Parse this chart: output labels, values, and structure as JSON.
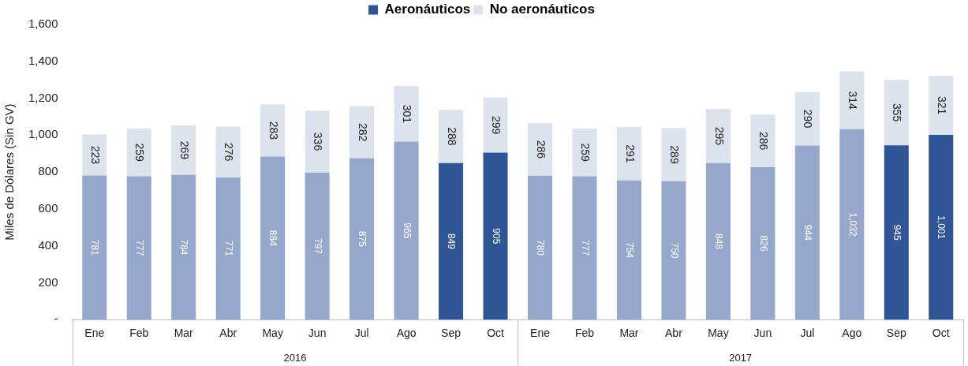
{
  "chart_data": {
    "type": "bar",
    "stacked": true,
    "ylabel": "Miles de Dólares (Sin GV)",
    "categories": [
      "Ene",
      "Feb",
      "Mar",
      "Abr",
      "May",
      "Jun",
      "Jul",
      "Ago",
      "Sep",
      "Oct",
      "Ene",
      "Feb",
      "Mar",
      "Abr",
      "May",
      "Jun",
      "Jul",
      "Ago",
      "Sep",
      "Oct"
    ],
    "annotations": [
      "2016",
      "2017"
    ],
    "series": [
      {
        "name": "Aeronáuticos",
        "color": "#2f5597",
        "colors": [
          "#95a8cb",
          "#95a8cb",
          "#95a8cb",
          "#95a8cb",
          "#95a8cb",
          "#95a8cb",
          "#95a8cb",
          "#95a8cb",
          "#2f5597",
          "#2f5597",
          "#95a8cb",
          "#95a8cb",
          "#95a8cb",
          "#95a8cb",
          "#95a8cb",
          "#95a8cb",
          "#95a8cb",
          "#95a8cb",
          "#2f5597",
          "#2f5597"
        ],
        "values": [
          781,
          777,
          784,
          771,
          884,
          797,
          875,
          965,
          849,
          905,
          780,
          777,
          754,
          750,
          848,
          826,
          944,
          1032,
          945,
          1001
        ],
        "value_labels": [
          "781",
          "777",
          "784",
          "771",
          "884",
          "797",
          "875",
          "965",
          "849",
          "905",
          "780",
          "777",
          "754",
          "750",
          "848",
          "826",
          "944",
          "1,032",
          "945",
          "1,001"
        ]
      },
      {
        "name": "No aeronáuticos",
        "color": "#dde3ec",
        "values": [
          223,
          259,
          269,
          276,
          283,
          336,
          282,
          301,
          288,
          299,
          286,
          259,
          291,
          289,
          295,
          286,
          290,
          314,
          355,
          321
        ],
        "value_labels": [
          "223",
          "259",
          "269",
          "276",
          "283",
          "336",
          "282",
          "301",
          "288",
          "299",
          "286",
          "259",
          "291",
          "289",
          "295",
          "286",
          "290",
          "314",
          "355",
          "321"
        ]
      }
    ],
    "ylim": [
      0,
      1600
    ],
    "yticks": [
      {
        "value": 0,
        "label": "-"
      },
      200,
      400,
      600,
      800,
      {
        "value": 1000,
        "label": "1,000"
      },
      {
        "value": 1200,
        "label": "1,200"
      },
      {
        "value": 1400,
        "label": "1,400"
      },
      {
        "value": 1600,
        "label": "1,600"
      }
    ],
    "grid": false,
    "legend": "top"
  }
}
